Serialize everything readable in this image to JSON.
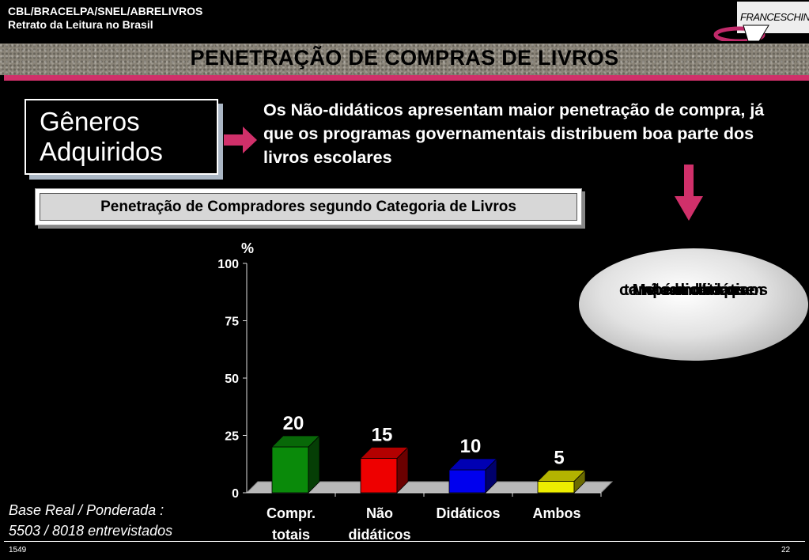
{
  "header": {
    "line1": "CBL/BRACELPA/SNEL/ABRELIVROS",
    "line2": "Retrato da Leitura no Brasil",
    "logo_text": "FRANCESCHINI"
  },
  "title": "PENETRAÇÃO DE COMPRAS DE LIVROS",
  "section_box": {
    "line1": "Gêneros",
    "line2": "Adquiridos"
  },
  "description": "Os Não-didáticos apresentam maior penetração de compra, já que  os programas governamentais distribuem boa parte dos livros escolares",
  "callout": {
    "line1": "Metade dos que",
    "line2": "compram didáticos",
    "line3": "também compram",
    "line4": "não-didáticos"
  },
  "base_note": {
    "line1": "Base Real / Ponderada :",
    "line2": "5503 / 8018 entrevistados"
  },
  "footer": {
    "code": "1549",
    "page": "22"
  },
  "colors": {
    "accent": "#d0306a"
  },
  "chart_data": {
    "type": "bar",
    "title": "Penetração de Compradores segundo Categoria de Livros",
    "ylabel": "%",
    "ylim": [
      0,
      100
    ],
    "yticks": [
      0,
      25,
      50,
      75,
      100
    ],
    "categories": [
      {
        "line1": "Compr.",
        "line2": "totais"
      },
      {
        "line1": "Não",
        "line2": "didáticos"
      },
      {
        "line1": "Didáticos",
        "line2": ""
      },
      {
        "line1": "Ambos",
        "line2": ""
      }
    ],
    "values": [
      20,
      15,
      10,
      5
    ],
    "bar_colors": [
      "#0a8a0a",
      "#ee0000",
      "#0000ee",
      "#eeee00"
    ],
    "legend": "none",
    "grid": false
  }
}
